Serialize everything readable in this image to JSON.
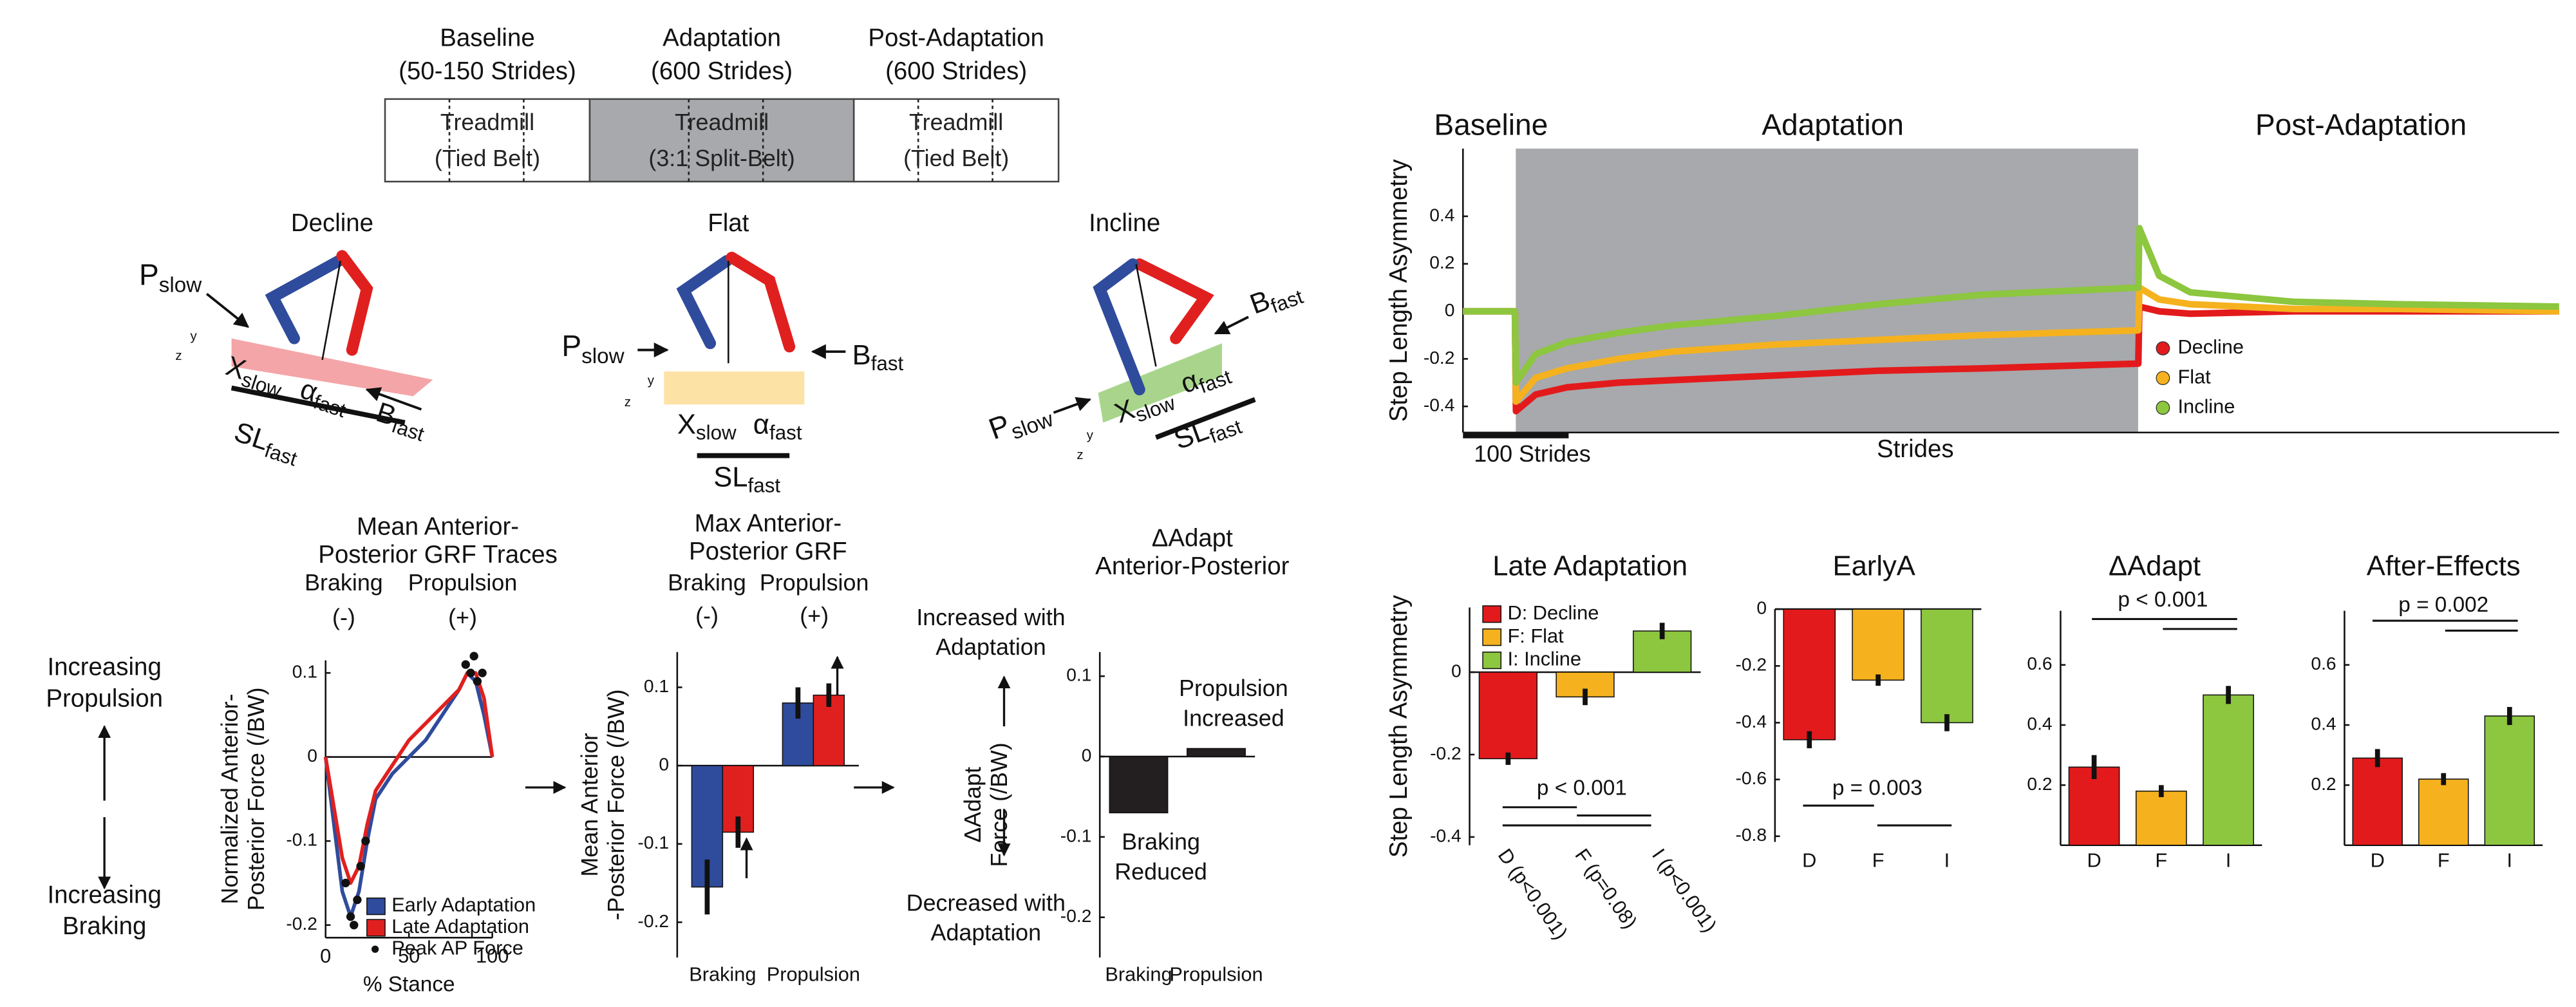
{
  "protocol": {
    "phases": [
      {
        "name": "Baseline",
        "duration": "(50-150 Strides)",
        "condition": "Treadmill",
        "belt": "(Tied Belt)"
      },
      {
        "name": "Adaptation",
        "duration": "(600 Strides)",
        "condition": "Treadmill",
        "belt": "(3:1 Split-Belt)"
      },
      {
        "name": "Post-Adaptation",
        "duration": "(600 Strides)",
        "condition": "Treadmill",
        "belt": "(Tied Belt)"
      }
    ]
  },
  "conditions": [
    "Decline",
    "Flat",
    "Incline"
  ],
  "symbols": {
    "p_slow": [
      "P",
      "slow"
    ],
    "b_fast": [
      "B",
      "fast"
    ],
    "x_slow": [
      "X",
      "slow"
    ],
    "alpha_fast": [
      "α",
      "fast"
    ],
    "sl_fast": [
      "SL",
      "fast"
    ]
  },
  "axis_letters": [
    "z",
    "y"
  ],
  "directions": {
    "up": [
      "Increasing",
      "Propulsion"
    ],
    "down": [
      "Increasing",
      "Braking"
    ]
  },
  "chart_data": [
    {
      "type": "line",
      "title": [
        "Mean Anterior-",
        "Posterior GRF Traces"
      ],
      "column_labels": [
        "Braking",
        "Propulsion"
      ],
      "column_signs": [
        "(-)",
        "(+)"
      ],
      "xlabel": "% Stance",
      "ylabel": [
        "Normalized Anterior-",
        "Posterior Force (/BW)"
      ],
      "xlim": [
        0,
        100
      ],
      "xticks": [
        0,
        50,
        100
      ],
      "ylim": [
        -0.215,
        0.115
      ],
      "yticks": [
        -0.2,
        -0.1,
        0,
        0.1
      ],
      "series": [
        {
          "name": "Early Adaptation",
          "color": "#2f4b9c",
          "x": [
            0,
            5,
            10,
            15,
            20,
            25,
            30,
            40,
            50,
            60,
            70,
            80,
            85,
            90,
            95,
            100
          ],
          "values": [
            0,
            -0.08,
            -0.16,
            -0.19,
            -0.16,
            -0.1,
            -0.05,
            -0.02,
            0,
            0.02,
            0.05,
            0.08,
            0.1,
            0.09,
            0.05,
            0
          ]
        },
        {
          "name": "Late Adaptation",
          "color": "#e0201f",
          "x": [
            0,
            5,
            10,
            15,
            20,
            25,
            30,
            40,
            50,
            60,
            70,
            80,
            85,
            90,
            95,
            100
          ],
          "values": [
            0,
            -0.06,
            -0.12,
            -0.15,
            -0.13,
            -0.08,
            -0.04,
            -0.01,
            0.02,
            0.04,
            0.06,
            0.08,
            0.1,
            0.1,
            0.07,
            0
          ]
        },
        {
          "name": "Peak AP Force",
          "color": "#111111",
          "style": "points",
          "x": [
            12,
            15,
            17,
            19,
            21,
            24,
            84,
            87,
            89,
            91,
            94
          ],
          "values": [
            -0.15,
            -0.19,
            -0.2,
            -0.17,
            -0.13,
            -0.1,
            0.11,
            0.1,
            0.12,
            0.09,
            0.1
          ]
        }
      ]
    },
    {
      "type": "bar",
      "title": [
        "Max Anterior-",
        "Posterior GRF"
      ],
      "column_labels": [
        "Braking",
        "Propulsion"
      ],
      "column_signs": [
        "(-)",
        "(+)"
      ],
      "ylabel": [
        "Mean Anterior",
        "-Posterior Force (/BW)"
      ],
      "categories": [
        "Braking",
        "Propulsion"
      ],
      "ylim": [
        -0.245,
        0.145
      ],
      "yticks": [
        -0.2,
        -0.1,
        0,
        0.1
      ],
      "series": [
        {
          "color": "#2f4b9c",
          "values": [
            -0.155,
            0.08
          ],
          "errors": [
            0.035,
            0.02
          ]
        },
        {
          "color": "#e0201f",
          "values": [
            -0.085,
            0.09
          ],
          "errors": [
            0.02,
            0.015
          ]
        }
      ]
    },
    {
      "type": "bar",
      "title": [
        "ΔAdapt",
        "Anterior-Posterior"
      ],
      "ylabel": [
        "ΔAdapt",
        "Force (/BW)"
      ],
      "categories": [
        "Braking",
        "Propulsion"
      ],
      "values": [
        -0.07,
        0.01
      ],
      "color": "#231f20",
      "ylim": [
        -0.25,
        0.13
      ],
      "yticks": [
        -0.2,
        -0.1,
        0,
        0.1
      ],
      "annotations": [
        [
          "Increased with",
          "Adaptation"
        ],
        [
          "Decreased with",
          "Adaptation"
        ],
        [
          "Propulsion",
          "Increased"
        ],
        [
          "Braking",
          "Reduced"
        ]
      ]
    },
    {
      "type": "line",
      "phase_labels": [
        "Baseline",
        "Adaptation",
        "Post-Adaptation"
      ],
      "xlabel": "Strides",
      "scale_bar_label": "100 Strides",
      "ylabel": "Step Length Asymmetry",
      "x": [
        0,
        25,
        50,
        51,
        70,
        100,
        150,
        200,
        300,
        400,
        500,
        650,
        651,
        670,
        700,
        800,
        900,
        1055
      ],
      "xlim": [
        0,
        1055
      ],
      "ylim": [
        -0.51,
        0.685
      ],
      "yticks": [
        -0.4,
        -0.2,
        0,
        0.2,
        0.4
      ],
      "series": [
        {
          "name": "Decline",
          "color": "#e31a1c",
          "values": [
            0,
            0,
            0,
            -0.42,
            -0.35,
            -0.32,
            -0.3,
            -0.29,
            -0.27,
            -0.25,
            -0.24,
            -0.22,
            0.02,
            0,
            -0.01,
            0,
            0,
            0
          ]
        },
        {
          "name": "Flat",
          "color": "#f5b21e",
          "values": [
            0,
            0,
            0,
            -0.38,
            -0.28,
            -0.24,
            -0.2,
            -0.17,
            -0.14,
            -0.12,
            -0.1,
            -0.08,
            0.1,
            0.05,
            0.03,
            0.01,
            0.01,
            0
          ]
        },
        {
          "name": "Incline",
          "color": "#8dc63f",
          "values": [
            0,
            0,
            0,
            -0.3,
            -0.18,
            -0.13,
            -0.09,
            -0.06,
            -0.02,
            0.03,
            0.07,
            0.1,
            0.35,
            0.15,
            0.08,
            0.04,
            0.03,
            0.02
          ]
        }
      ]
    },
    {
      "type": "bar",
      "title": "Late Adaptation",
      "ylabel": "Step Length Asymmetry",
      "categories": [
        "D (p<0.001)",
        "F (p=0.08)",
        "I (p<0.001)"
      ],
      "values": [
        -0.21,
        -0.06,
        0.1
      ],
      "errors": [
        0.015,
        0.02,
        0.02
      ],
      "colors": [
        "#e31a1c",
        "#f5b21e",
        "#8dc63f"
      ],
      "legend_labels": [
        "D: Decline",
        "F: Flat",
        "I: Incline"
      ],
      "ylim": [
        -0.42,
        0.157
      ],
      "yticks": [
        -0.4,
        -0.2,
        0
      ],
      "annotations": [
        "p < 0.001"
      ]
    },
    {
      "type": "bar",
      "title": "EarlyA",
      "categories": [
        "D",
        "F",
        "I"
      ],
      "values": [
        -0.46,
        -0.25,
        -0.4
      ],
      "errors": [
        0.03,
        0.02,
        0.03
      ],
      "colors": [
        "#e31a1c",
        "#f5b21e",
        "#8dc63f"
      ],
      "ylim": [
        -0.82,
        0
      ],
      "yticks": [
        -0.8,
        -0.6,
        -0.4,
        -0.2,
        0
      ],
      "annotations": [
        "p = 0.003"
      ]
    },
    {
      "type": "bar",
      "title": "ΔAdapt",
      "categories": [
        "D",
        "F",
        "I"
      ],
      "values": [
        0.26,
        0.18,
        0.5
      ],
      "errors": [
        0.04,
        0.02,
        0.03
      ],
      "colors": [
        "#e31a1c",
        "#f5b21e",
        "#8dc63f"
      ],
      "ylim": [
        0,
        0.78
      ],
      "yticks": [
        0.2,
        0.4,
        0.6
      ],
      "annotations": [
        "p < 0.001"
      ]
    },
    {
      "type": "bar",
      "title": "After-Effects",
      "categories": [
        "D",
        "F",
        "I"
      ],
      "values": [
        0.29,
        0.22,
        0.43
      ],
      "errors": [
        0.03,
        0.02,
        0.03
      ],
      "colors": [
        "#e31a1c",
        "#f5b21e",
        "#8dc63f"
      ],
      "ylim": [
        0,
        0.78
      ],
      "yticks": [
        0.2,
        0.4,
        0.6
      ],
      "annotations": [
        "p = 0.002"
      ]
    }
  ]
}
